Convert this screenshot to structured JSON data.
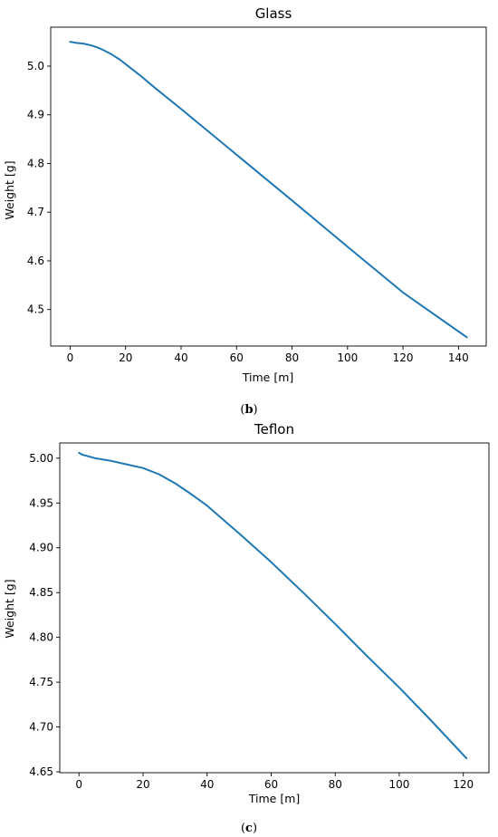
{
  "chart_data": [
    {
      "type": "line",
      "title": "Glass",
      "xlabel": "Time [m]",
      "ylabel": "Weight [g]",
      "xlim": [
        -7,
        150
      ],
      "ylim": [
        4.425,
        5.08
      ],
      "xticks": [
        0,
        20,
        40,
        60,
        80,
        100,
        120,
        140
      ],
      "yticks": [
        4.5,
        4.6,
        4.7,
        4.8,
        4.9,
        5.0
      ],
      "ytick_labels": [
        "4.5",
        "4.6",
        "4.7",
        "4.8",
        "4.9",
        "5.0"
      ],
      "grid": false,
      "caption_letter": "b",
      "series": [
        {
          "color": "#1f77b4",
          "x": [
            0,
            2,
            5,
            8,
            10,
            12,
            15,
            18,
            20,
            25,
            30,
            40,
            60,
            80,
            100,
            120,
            143
          ],
          "y": [
            5.05,
            5.048,
            5.046,
            5.042,
            5.038,
            5.033,
            5.024,
            5.013,
            5.004,
            4.982,
            4.958,
            4.912,
            4.818,
            4.724,
            4.629,
            4.535,
            4.443
          ]
        }
      ]
    },
    {
      "type": "line",
      "title": "Teflon",
      "xlabel": "Time [m]",
      "ylabel": "Weight [g]",
      "xlim": [
        -6,
        128
      ],
      "ylim": [
        4.649,
        5.017
      ],
      "xticks": [
        0,
        20,
        40,
        60,
        80,
        100,
        120
      ],
      "yticks": [
        4.65,
        4.7,
        4.75,
        4.8,
        4.85,
        4.9,
        4.95,
        5.0
      ],
      "ytick_labels": [
        "4.65",
        "4.70",
        "4.75",
        "4.80",
        "4.85",
        "4.90",
        "4.95",
        "5.00"
      ],
      "grid": false,
      "caption_letter": "c",
      "series": [
        {
          "color": "#1f77b4",
          "x": [
            0,
            1,
            3,
            5,
            10,
            15,
            20,
            25,
            30,
            35,
            40,
            50,
            60,
            70,
            80,
            90,
            100,
            110,
            121
          ],
          "y": [
            5.006,
            5.004,
            5.002,
            5.0,
            4.997,
            4.993,
            4.989,
            4.982,
            4.972,
            4.96,
            4.947,
            4.916,
            4.884,
            4.85,
            4.815,
            4.779,
            4.744,
            4.707,
            4.665
          ]
        }
      ]
    }
  ]
}
